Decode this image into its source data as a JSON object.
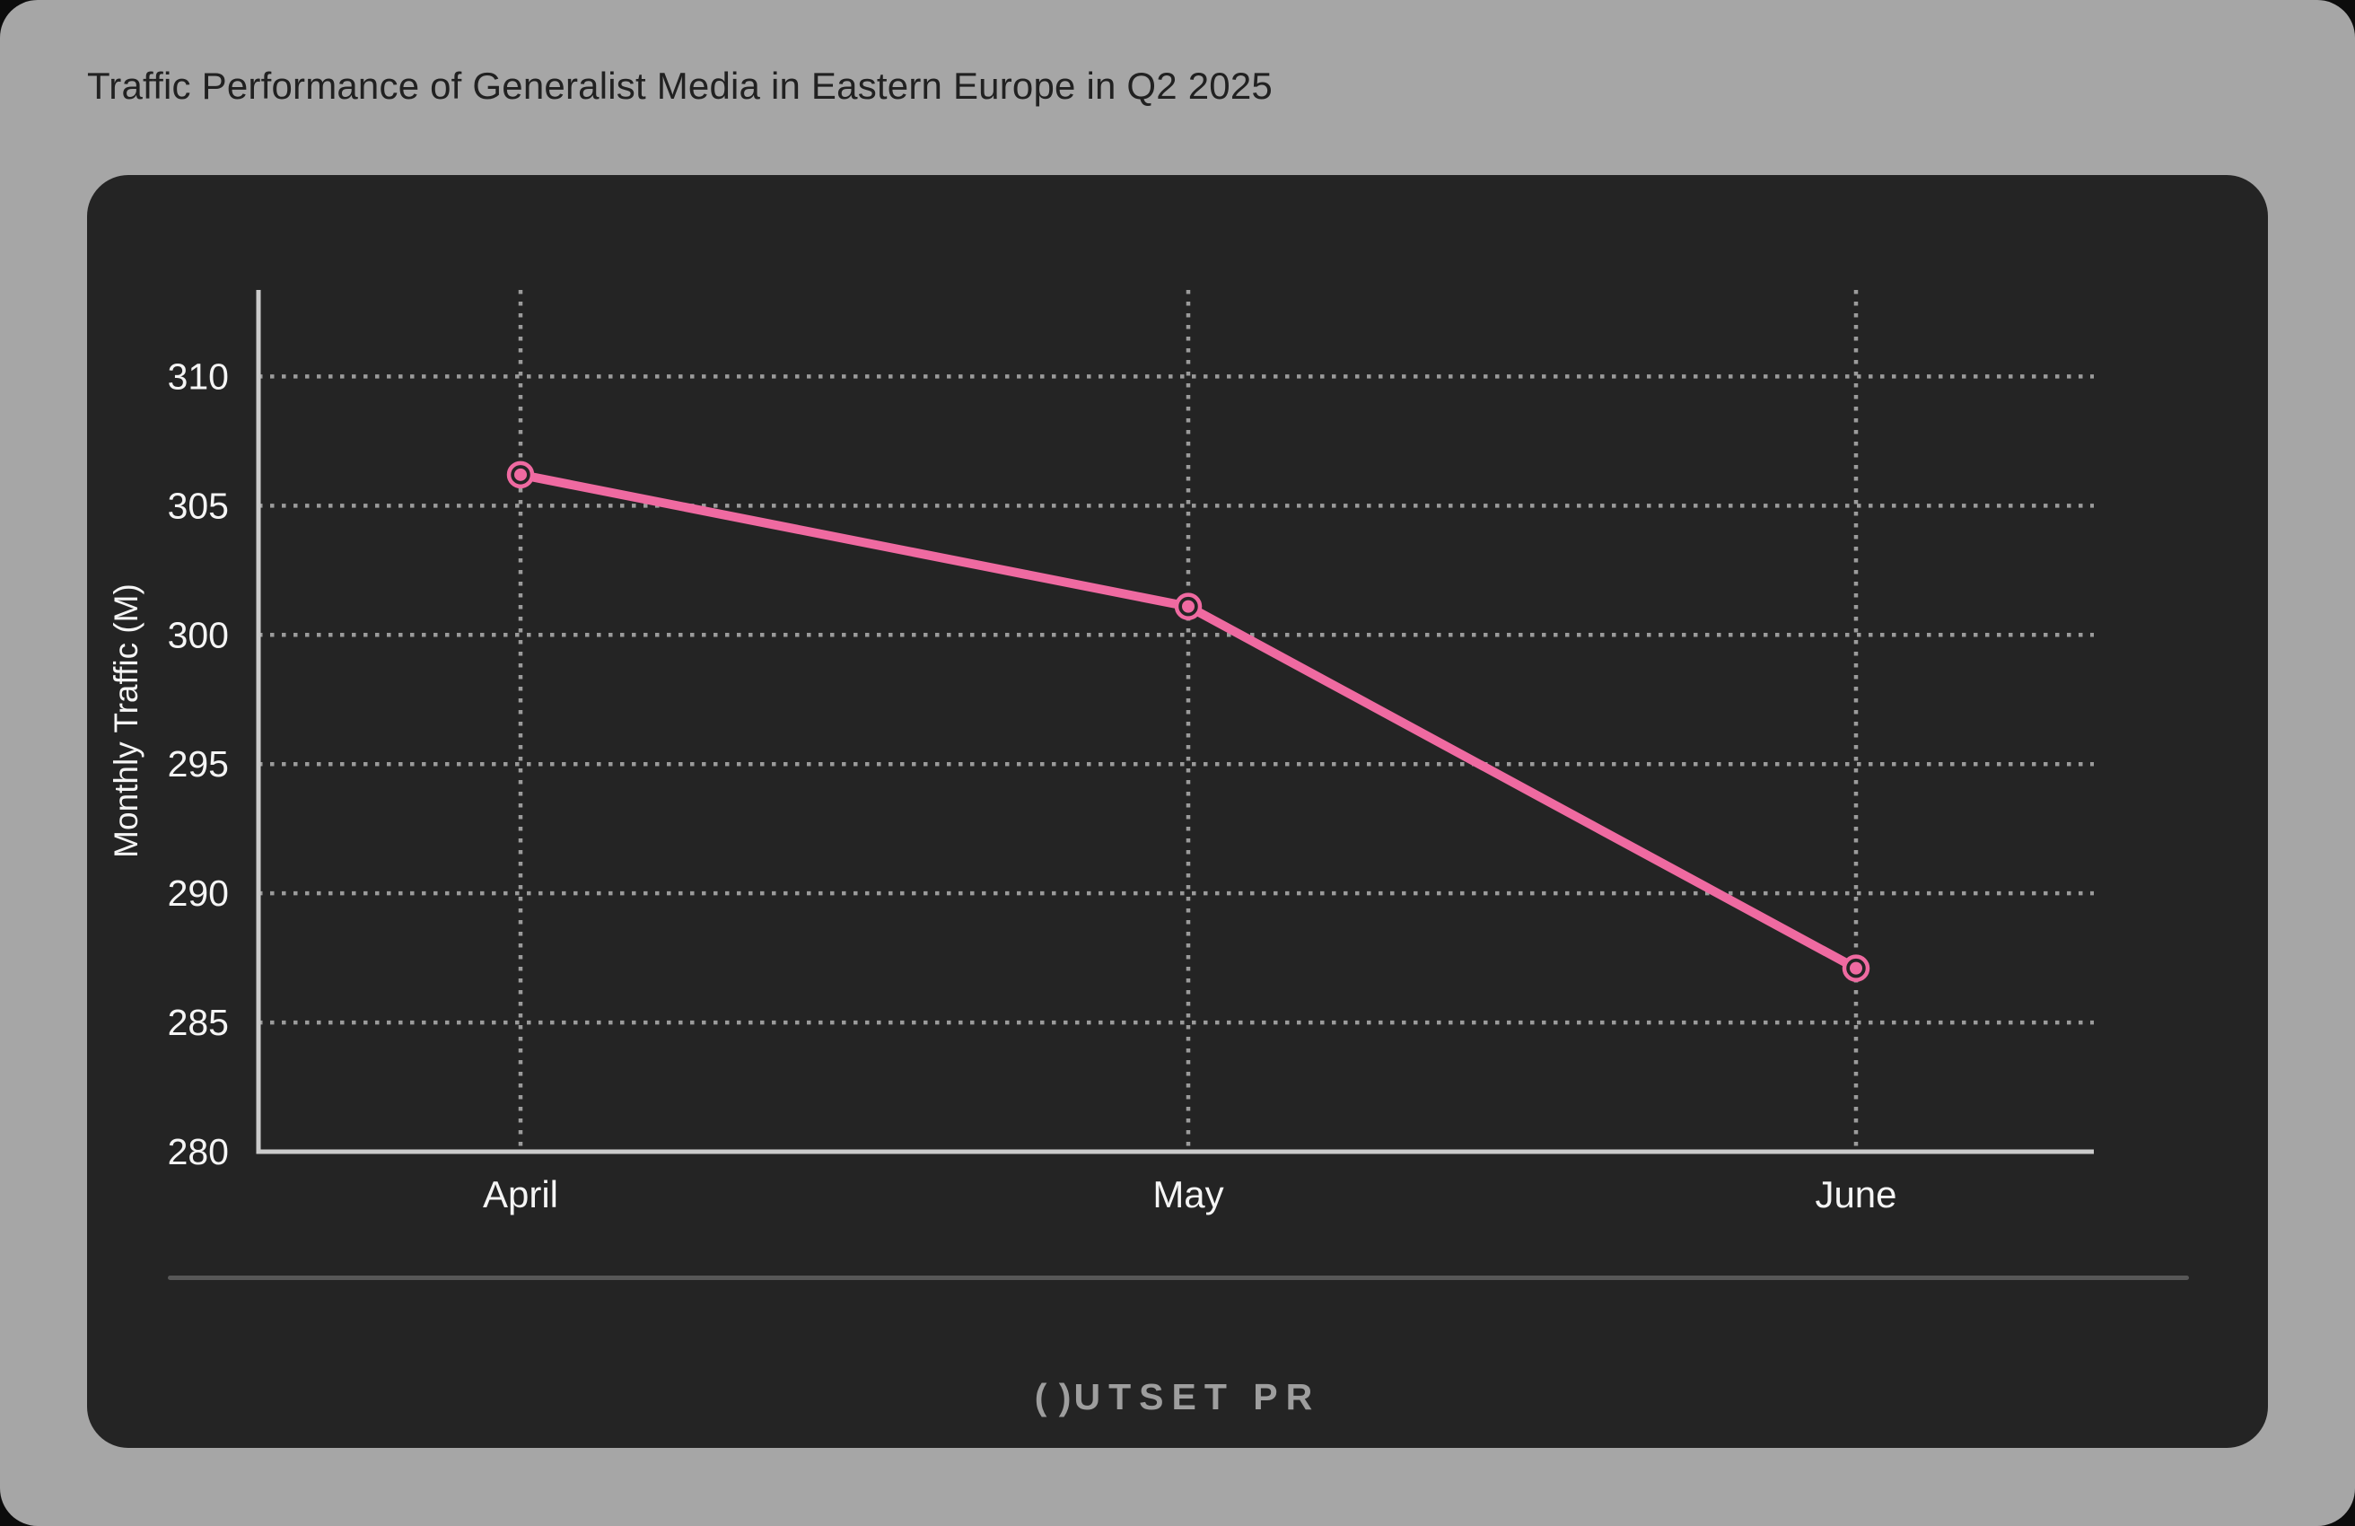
{
  "page": {
    "title_note": "title text lives in chart_data.title"
  },
  "brand": {
    "logo_o": "( )",
    "logo_rest": "UTSET PR"
  },
  "colors": {
    "background": "#a6a6a6",
    "card": "#242424",
    "accent_line": "#ef6aa1",
    "axis": "#cbcbcb",
    "grid": "#9b9b9b",
    "tick_text": "#f5f5f5",
    "title_text": "#212121",
    "divider": "#575757",
    "logo_text": "#9e9e9e"
  },
  "chart_data": {
    "type": "line",
    "title": "Traffic Performance of Generalist Media in Eastern Europe in Q2 2025",
    "categories": [
      "April",
      "May",
      "June"
    ],
    "series": [
      {
        "name": "Monthly Traffic",
        "values": [
          306.2,
          301.1,
          287.1
        ]
      }
    ],
    "xlabel": "",
    "ylabel": "Monthly Traffic (M)",
    "ylim": [
      280,
      313.35
    ],
    "yticks": [
      280,
      285,
      290,
      295,
      300,
      305,
      310
    ],
    "grid": "dotted",
    "legend": "none",
    "marker": "ring-dot"
  }
}
